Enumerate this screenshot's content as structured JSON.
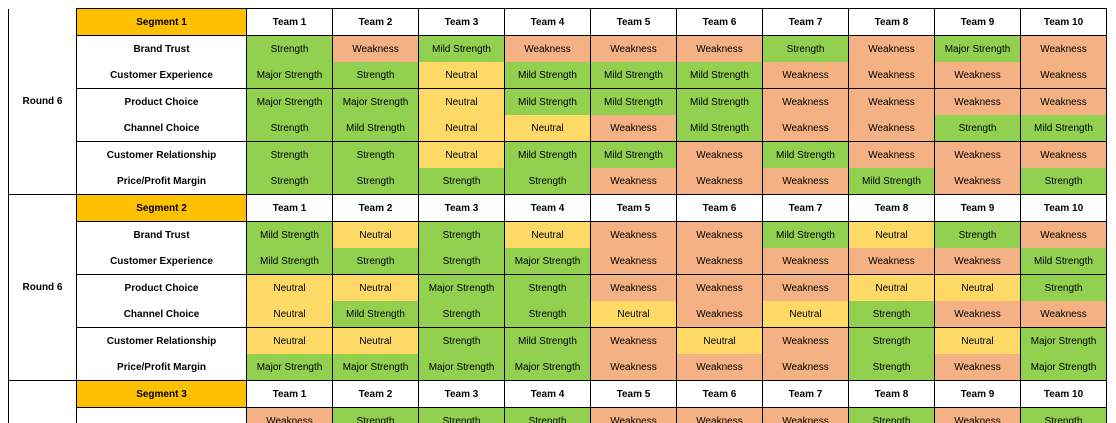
{
  "colors": {
    "segment_header": "#ffc000",
    "strength_green": "#92d050",
    "neutral_yellow": "#ffd966",
    "weakness_salmon": "#f4b183"
  },
  "team_headers": [
    "Team 1",
    "Team 2",
    "Team 3",
    "Team 4",
    "Team 5",
    "Team 6",
    "Team 7",
    "Team 8",
    "Team 9",
    "Team 10"
  ],
  "segments": [
    {
      "round": "Round 6",
      "name": "Segment 1",
      "rows": [
        {
          "label": "Brand Trust",
          "values": [
            "Strength",
            "Weakness",
            "Mild Strength",
            "Weakness",
            "Weakness",
            "Weakness",
            "Strength",
            "Weakness",
            "Major Strength",
            "Weakness"
          ]
        },
        {
          "label": "Customer Experience",
          "values": [
            "Major Strength",
            "Strength",
            "Neutral",
            "Mild Strength",
            "Mild Strength",
            "Mild Strength",
            "Weakness",
            "Weakness",
            "Weakness",
            "Weakness"
          ]
        },
        {
          "label": "Product Choice",
          "values": [
            "Major Strength",
            "Major Strength",
            "Neutral",
            "Mild Strength",
            "Mild Strength",
            "Mild Strength",
            "Weakness",
            "Weakness",
            "Weakness",
            "Weakness"
          ]
        },
        {
          "label": "Channel Choice",
          "values": [
            "Strength",
            "Mild Strength",
            "Neutral",
            "Neutral",
            "Weakness",
            "Mild Strength",
            "Weakness",
            "Weakness",
            "Strength",
            "Mild Strength"
          ]
        },
        {
          "label": "Customer Relationship",
          "values": [
            "Strength",
            "Strength",
            "Neutral",
            "Mild Strength",
            "Mild Strength",
            "Weakness",
            "Mild Strength",
            "Weakness",
            "Weakness",
            "Weakness"
          ]
        },
        {
          "label": "Price/Profit Margin",
          "values": [
            "Strength",
            "Strength",
            "Strength",
            "Strength",
            "Weakness",
            "Weakness",
            "Weakness",
            "Mild Strength",
            "Weakness",
            "Strength"
          ]
        }
      ]
    },
    {
      "round": "Round 6",
      "name": "Segment 2",
      "rows": [
        {
          "label": "Brand Trust",
          "values": [
            "Mild Strength",
            "Neutral",
            "Strength",
            "Neutral",
            "Weakness",
            "Weakness",
            "Mild Strength",
            "Neutral",
            "Strength",
            "Weakness"
          ]
        },
        {
          "label": "Customer Experience",
          "values": [
            "Mild Strength",
            "Strength",
            "Strength",
            "Major Strength",
            "Weakness",
            "Weakness",
            "Weakness",
            "Weakness",
            "Weakness",
            "Mild Strength"
          ]
        },
        {
          "label": "Product Choice",
          "values": [
            "Neutral",
            "Neutral",
            "Major Strength",
            "Strength",
            "Weakness",
            "Weakness",
            "Weakness",
            "Neutral",
            "Neutral",
            "Strength"
          ]
        },
        {
          "label": "Channel Choice",
          "values": [
            "Neutral",
            "Mild Strength",
            "Strength",
            "Strength",
            "Neutral",
            "Weakness",
            "Neutral",
            "Strength",
            "Weakness",
            "Weakness"
          ]
        },
        {
          "label": "Customer Relationship",
          "values": [
            "Neutral",
            "Neutral",
            "Strength",
            "Mild Strength",
            "Weakness",
            "Neutral",
            "Weakness",
            "Strength",
            "Neutral",
            "Major Strength"
          ]
        },
        {
          "label": "Price/Profit Margin",
          "values": [
            "Major Strength",
            "Major Strength",
            "Major Strength",
            "Major Strength",
            "Weakness",
            "Weakness",
            "Weakness",
            "Strength",
            "Weakness",
            "Major Strength"
          ]
        }
      ]
    },
    {
      "round": "",
      "name": "Segment 3",
      "rows": [
        {
          "label": "",
          "values": [
            "Weakness",
            "Strength",
            "Strength",
            "Strength",
            "Weakness",
            "Weakness",
            "Weakness",
            "Strength",
            "Weakness",
            "Strength"
          ]
        }
      ]
    }
  ]
}
